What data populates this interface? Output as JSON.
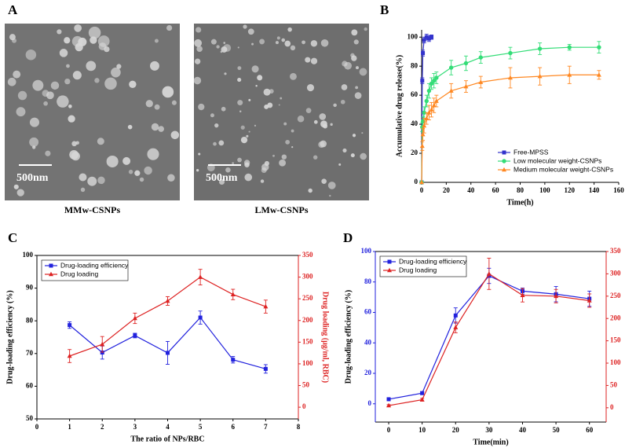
{
  "images": {
    "panel": "A",
    "items": [
      {
        "scale": "500nm",
        "caption": "MMw-CSNPs"
      },
      {
        "scale": "500nm",
        "caption": "LMw-CSNPs"
      }
    ]
  },
  "chart_data": [
    {
      "type": "line",
      "panel": "B",
      "xlabel": "Time(h)",
      "ylabel": "Accumulative drug release(%)",
      "xlim": [
        0,
        160
      ],
      "xticks": [
        0,
        20,
        40,
        60,
        80,
        100,
        120,
        140,
        160
      ],
      "ylim": [
        0,
        105
      ],
      "yticks": [
        0,
        20,
        40,
        60,
        80,
        100
      ],
      "legend": "lower right",
      "series": [
        {
          "name": "Free-MPSS",
          "color": "#3333cc",
          "marker": "square",
          "x": [
            0,
            0.5,
            1,
            2,
            4,
            6,
            8
          ],
          "values": [
            0,
            70,
            89,
            98,
            100,
            99,
            100
          ],
          "errors": [
            0,
            2,
            2,
            2,
            2,
            2,
            1.5
          ]
        },
        {
          "name": "Low molecular weight-CSNPs",
          "color": "#33dd77",
          "marker": "circle",
          "x": [
            0,
            0.5,
            1,
            2,
            4,
            6,
            8,
            10,
            12,
            24,
            36,
            48,
            72,
            96,
            120,
            144
          ],
          "values": [
            0,
            38,
            42,
            48,
            56,
            63,
            68,
            70,
            72,
            79,
            82,
            86,
            89,
            92,
            93,
            93
          ],
          "errors": [
            0,
            3,
            3,
            4,
            4,
            5,
            4,
            5,
            4,
            5,
            5,
            4,
            4,
            4,
            2,
            4
          ]
        },
        {
          "name": "Medium molecular weight-CSNPs",
          "color": "#ff8822",
          "marker": "triangle",
          "x": [
            0,
            0.5,
            1,
            2,
            4,
            6,
            8,
            10,
            12,
            24,
            36,
            48,
            72,
            96,
            120,
            144
          ],
          "values": [
            0,
            25,
            33,
            39,
            44,
            48,
            50,
            53,
            56,
            63,
            66,
            69,
            72,
            73,
            74,
            74
          ],
          "errors": [
            0,
            3,
            4,
            5,
            4,
            5,
            5,
            5,
            4,
            5,
            4,
            4,
            7,
            6,
            6,
            3
          ]
        }
      ]
    },
    {
      "type": "line",
      "panel": "C",
      "xlabel": "The ratio of NPs/RBC",
      "ylabel": "Drug-loading efficiency (%)",
      "y2label": "Drug loading (μg/ml, RBC)",
      "y_axis_color": "#000000",
      "y2_axis_color": "#dd2222",
      "xlim": [
        0,
        8
      ],
      "xticks": [
        0,
        1,
        2,
        3,
        4,
        5,
        6,
        7,
        8
      ],
      "ylim": [
        50,
        100
      ],
      "yticks": [
        50,
        60,
        70,
        80,
        90,
        100
      ],
      "y2lim": [
        -27,
        350
      ],
      "y2ticks": [
        0,
        50,
        100,
        150,
        200,
        250,
        300,
        350
      ],
      "legend": "upper left",
      "series": [
        {
          "name": "Drug-loading efficiency",
          "color": "#2222dd",
          "marker": "square",
          "x": [
            1,
            2,
            3,
            4,
            5,
            6,
            7
          ],
          "values": [
            78.7,
            70.3,
            75.5,
            70.2,
            81,
            68.1,
            65.3
          ],
          "errors": [
            1,
            2,
            0.7,
            3.5,
            2,
            1,
            1.3
          ]
        },
        {
          "name": "Drug loading",
          "color": "#dd2222",
          "marker": "triangle",
          "axis": "y2",
          "x": [
            1,
            2,
            3,
            4,
            5,
            6,
            7
          ],
          "values": [
            118,
            145,
            205,
            245,
            300,
            260,
            232
          ],
          "errors": [
            15,
            18,
            12,
            10,
            18,
            12,
            15
          ]
        }
      ]
    },
    {
      "type": "line",
      "panel": "D",
      "xlabel": "Time(min)",
      "ylabel": "Drug-loading efficiency (%)",
      "y2label": "Drug loading (μg/ml, RBC)",
      "y_axis_color": "#2222dd",
      "y2_axis_color": "#dd2222",
      "xlim": [
        -4,
        65
      ],
      "xticks": [
        0,
        10,
        20,
        30,
        40,
        50,
        60
      ],
      "ylim": [
        -12,
        100
      ],
      "yticks": [
        0,
        20,
        40,
        60,
        80,
        100
      ],
      "y2lim": [
        -32,
        350
      ],
      "y2ticks": [
        0,
        50,
        100,
        150,
        200,
        250,
        300,
        350
      ],
      "legend": "upper left",
      "series": [
        {
          "name": "Drug-loading efficiency",
          "color": "#2222dd",
          "marker": "square",
          "x": [
            0,
            10,
            20,
            30,
            40,
            50,
            60
          ],
          "values": [
            3,
            7,
            58,
            84,
            74,
            72,
            69
          ],
          "errors": [
            0.5,
            1,
            5,
            5,
            2,
            5,
            5
          ]
        },
        {
          "name": "Drug loading",
          "color": "#dd2222",
          "marker": "triangle",
          "axis": "y2",
          "x": [
            0,
            10,
            20,
            30,
            40,
            50,
            60
          ],
          "values": [
            5,
            18,
            180,
            300,
            252,
            250,
            240
          ],
          "errors": [
            2,
            3,
            12,
            35,
            15,
            15,
            15
          ]
        }
      ]
    }
  ]
}
